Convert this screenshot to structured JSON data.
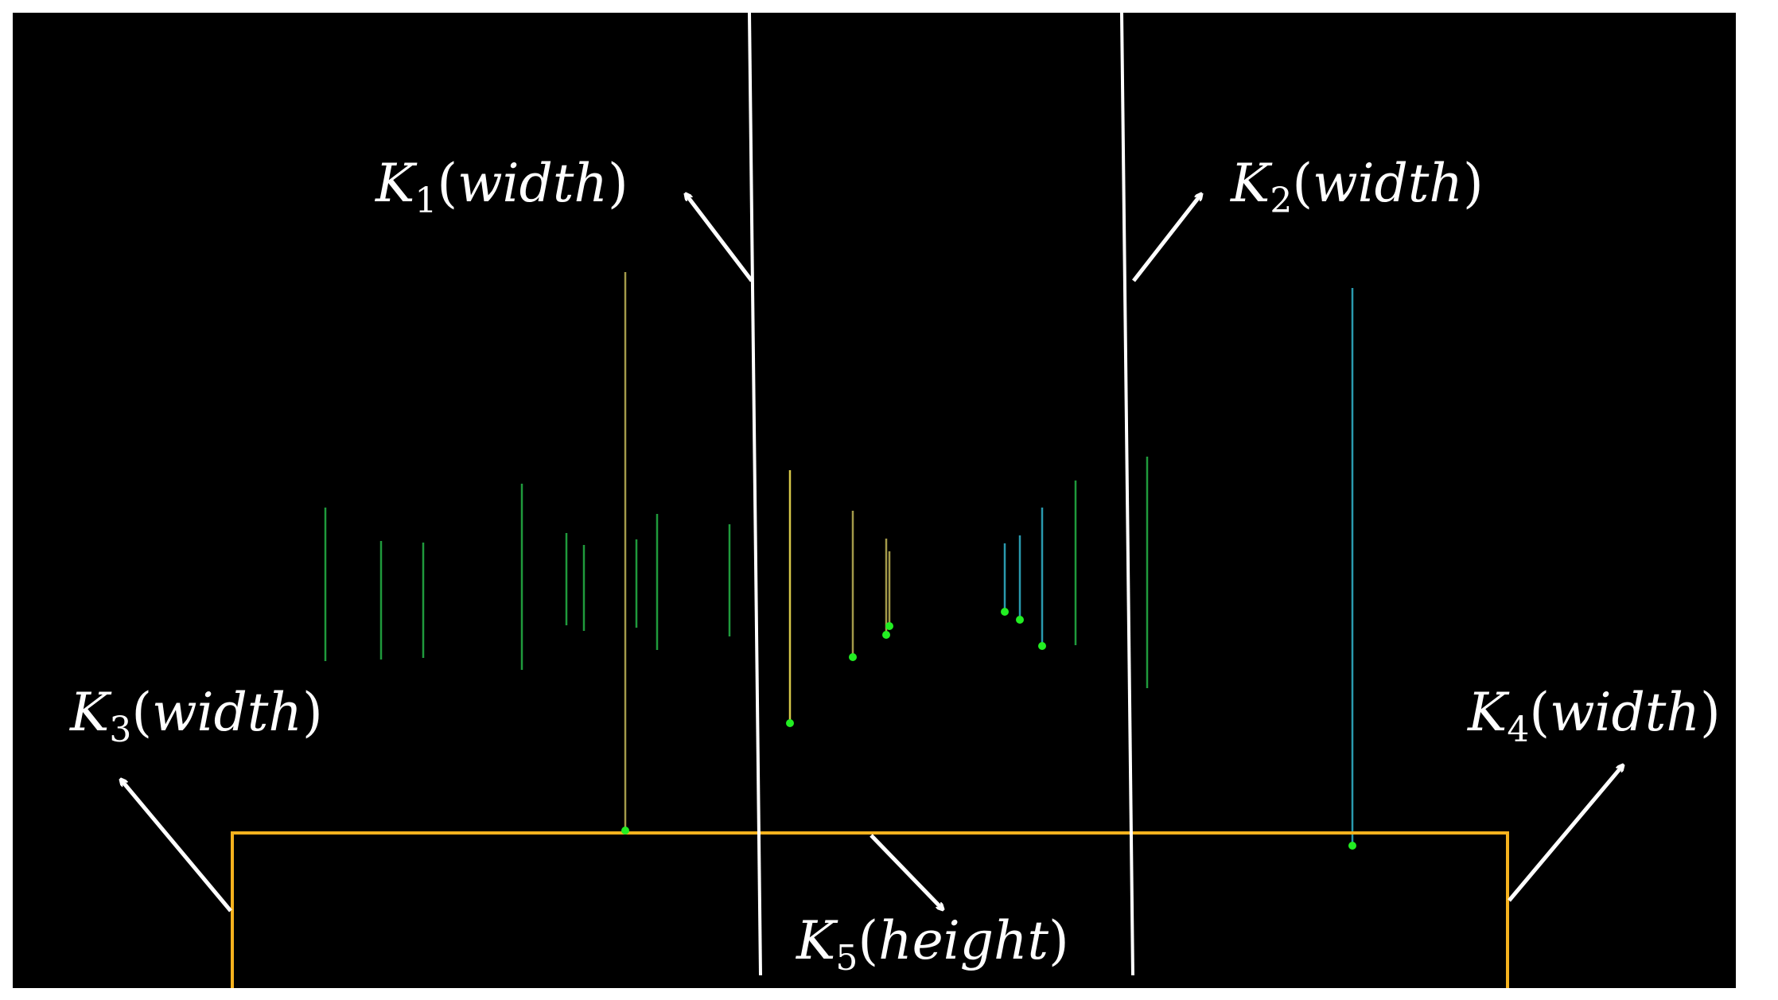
{
  "figure": {
    "background_color": "#000000",
    "frame_color": "#ffffff",
    "boundary_line_color": "#ffffff",
    "arrow_color": "#ffffff",
    "region_box_color": "#f5b21e",
    "endpoint_dot_color": "#22ee22"
  },
  "labels": {
    "k1": {
      "letter": "K",
      "sub": "1",
      "open": "(",
      "word": "width",
      "close": ")"
    },
    "k2": {
      "letter": "K",
      "sub": "2",
      "open": "(",
      "word": "width",
      "close": ")"
    },
    "k3": {
      "letter": "K",
      "sub": "3",
      "open": "(",
      "word": "width",
      "close": ")"
    },
    "k4": {
      "letter": "K",
      "sub": "4",
      "open": "(",
      "word": "width",
      "close": ")"
    },
    "k5": {
      "letter": "K",
      "sub": "5",
      "open": "(",
      "word": "height",
      "close": ")"
    }
  },
  "segment_colors": {
    "green": "#1f9a3c",
    "olive": "#a39a4a",
    "yellow": "#d6c84a",
    "teal": "#2a9aae"
  }
}
